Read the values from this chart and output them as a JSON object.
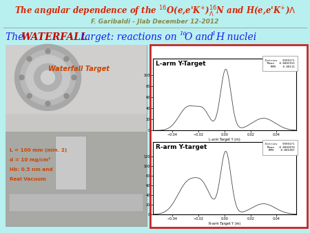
{
  "bg_color": "#b8f0f0",
  "title_text": "The angular dependence of the $^{16}$O(e,e'K$^{+}$)$^{16}_{\\Lambda}$N and H(e,e'K$^{+}$)$\\Lambda$",
  "title_color": "#dd2200",
  "subtitle": "F. Garibaldi - Jlab December 12-2012",
  "subtitle_color": "#888844",
  "body_plain": "The ",
  "body_bold": "WATERFALL",
  "body_rest": " target: reactions on ",
  "body_16O": "O and ",
  "body_1H": "H nuclei",
  "body_color_plain": "#1a1aee",
  "body_color_bold": "#cc0000",
  "photo_label": "Waterfall Target",
  "photo_label_color": "#cc4400",
  "spec_texts": [
    "L = 100 mm (min. 2)",
    "d = 10 mg/cm²",
    "Hb: 0.5 nm and",
    "Real Vacuum"
  ],
  "spec_color": "#cc4400",
  "panel_border_color": "#cc2222",
  "larm_title": "L-arm Y-Target",
  "rarm_title": "R-arm Y-target",
  "larm_stats": "Entries   9999171\nMean   0.0002911\nRMS    0.00111",
  "rarm_stats": "Entries   9999171\nMean  -0.0003076\nRMS    0.001987",
  "larm_xlabel": "L-arm Target Y (m)",
  "rarm_xlabel": "R-arm Target Y (m)"
}
